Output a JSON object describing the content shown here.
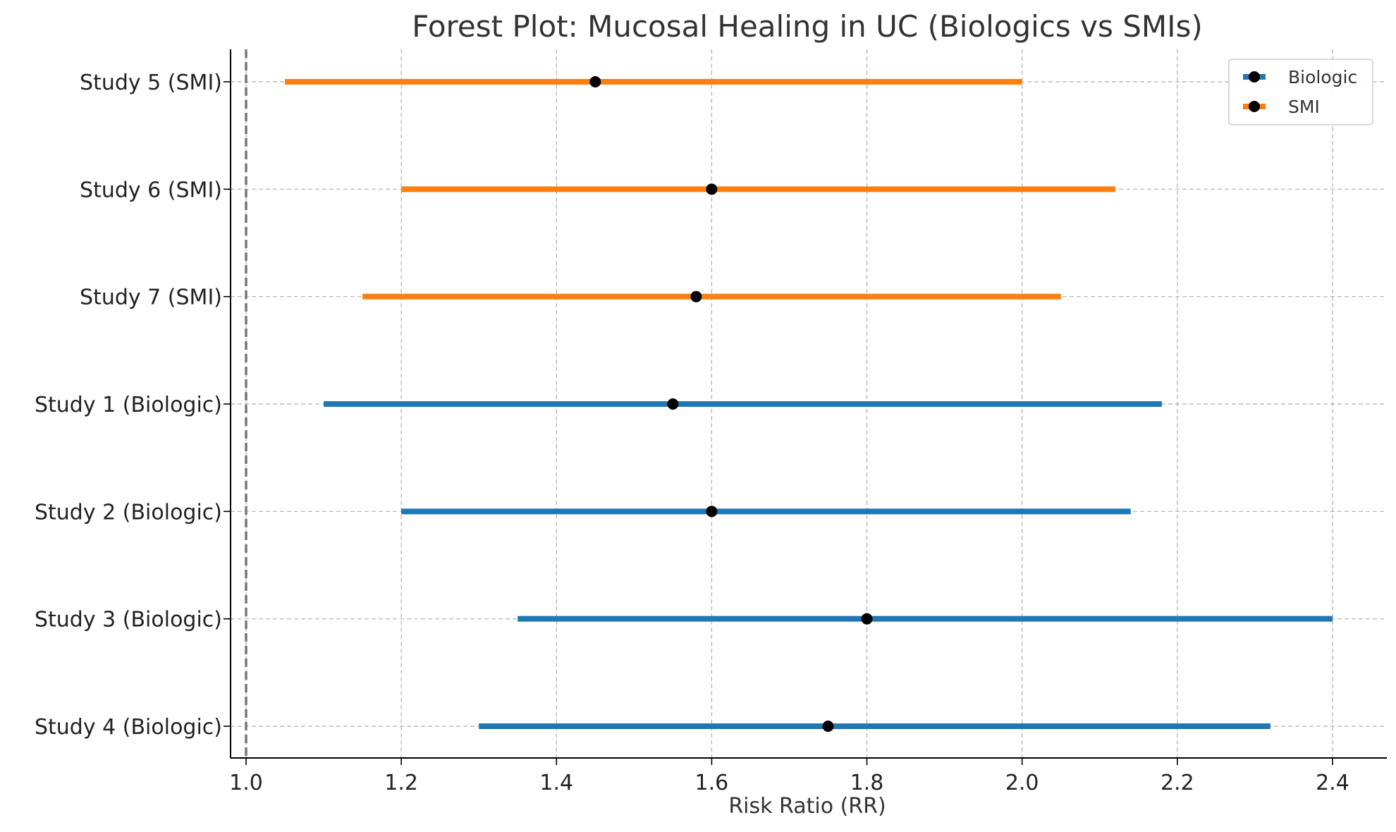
{
  "chart_data": {
    "type": "forest",
    "title": "Forest Plot: Mucosal Healing in UC (Biologics vs SMIs)",
    "xlabel": "Risk Ratio (RR)",
    "ylabel": "",
    "xlim": [
      0.98,
      2.47
    ],
    "xticks": [
      1.0,
      1.2,
      1.4,
      1.6,
      1.8,
      2.0,
      2.2,
      2.4
    ],
    "xtick_labels": [
      "1.0",
      "1.2",
      "1.4",
      "1.6",
      "1.8",
      "2.0",
      "2.2",
      "2.4"
    ],
    "reference_line": 1.0,
    "grid": true,
    "legend_position": "top-right",
    "series": [
      {
        "name": "Biologic",
        "color": "#1f77b4"
      },
      {
        "name": "SMI",
        "color": "#ff7f0e"
      }
    ],
    "studies": [
      {
        "label": "Study 5 (SMI)",
        "group": "SMI",
        "rr": 1.45,
        "ci_low": 1.05,
        "ci_high": 2.0
      },
      {
        "label": "Study 6 (SMI)",
        "group": "SMI",
        "rr": 1.6,
        "ci_low": 1.2,
        "ci_high": 2.12
      },
      {
        "label": "Study 7 (SMI)",
        "group": "SMI",
        "rr": 1.58,
        "ci_low": 1.15,
        "ci_high": 2.05
      },
      {
        "label": "Study 1 (Biologic)",
        "group": "Biologic",
        "rr": 1.55,
        "ci_low": 1.1,
        "ci_high": 2.18
      },
      {
        "label": "Study 2 (Biologic)",
        "group": "Biologic",
        "rr": 1.6,
        "ci_low": 1.2,
        "ci_high": 2.14
      },
      {
        "label": "Study 3 (Biologic)",
        "group": "Biologic",
        "rr": 1.8,
        "ci_low": 1.35,
        "ci_high": 2.4
      },
      {
        "label": "Study 4 (Biologic)",
        "group": "Biologic",
        "rr": 1.75,
        "ci_low": 1.3,
        "ci_high": 2.32
      }
    ]
  }
}
